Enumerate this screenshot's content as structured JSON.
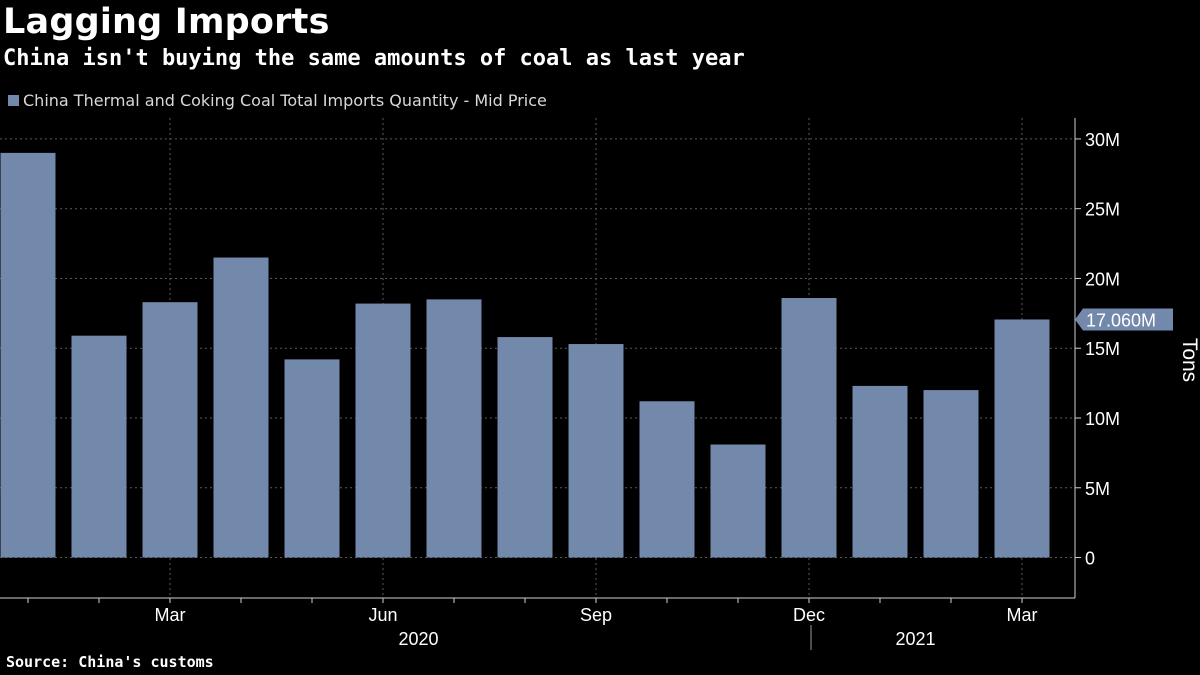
{
  "title": "Lagging Imports",
  "subtitle": "China isn't buying the same amounts of coal as last year",
  "legend": {
    "label": "China Thermal and Coking Coal Total Imports Quantity - Mid Price",
    "color": "#7389ac"
  },
  "source": "Source: China's customs",
  "chart_data": {
    "type": "bar",
    "categories": [
      "Jan 2020",
      "Feb 2020",
      "Mar 2020",
      "Apr 2020",
      "May 2020",
      "Jun 2020",
      "Jul 2020",
      "Aug 2020",
      "Sep 2020",
      "Oct 2020",
      "Nov 2020",
      "Dec 2020",
      "Jan 2021",
      "Feb 2021",
      "Mar 2021"
    ],
    "values": [
      29.0,
      15.9,
      18.3,
      21.5,
      14.2,
      18.2,
      18.5,
      15.8,
      15.3,
      11.2,
      8.1,
      18.6,
      12.3,
      12.0,
      17.06
    ],
    "ylabel": "Tons",
    "ylim": [
      -2.9,
      31.5
    ],
    "yticks": [
      0,
      5,
      10,
      15,
      20,
      25,
      30
    ],
    "ytick_labels": [
      "0",
      "5M",
      "10M",
      "15M",
      "20M",
      "25M",
      "30M"
    ],
    "xtick_labels": [
      {
        "label": "Mar",
        "index": 2
      },
      {
        "label": "Jun",
        "index": 5
      },
      {
        "label": "Sep",
        "index": 8
      },
      {
        "label": "Dec",
        "index": 11
      },
      {
        "label": "Mar",
        "index": 14
      }
    ],
    "year_labels": [
      {
        "label": "2020",
        "index": 5.5
      },
      {
        "label": "2021",
        "index": 12.5
      }
    ],
    "last_value_label": "17.060M",
    "bar_color": "#7389ac"
  }
}
